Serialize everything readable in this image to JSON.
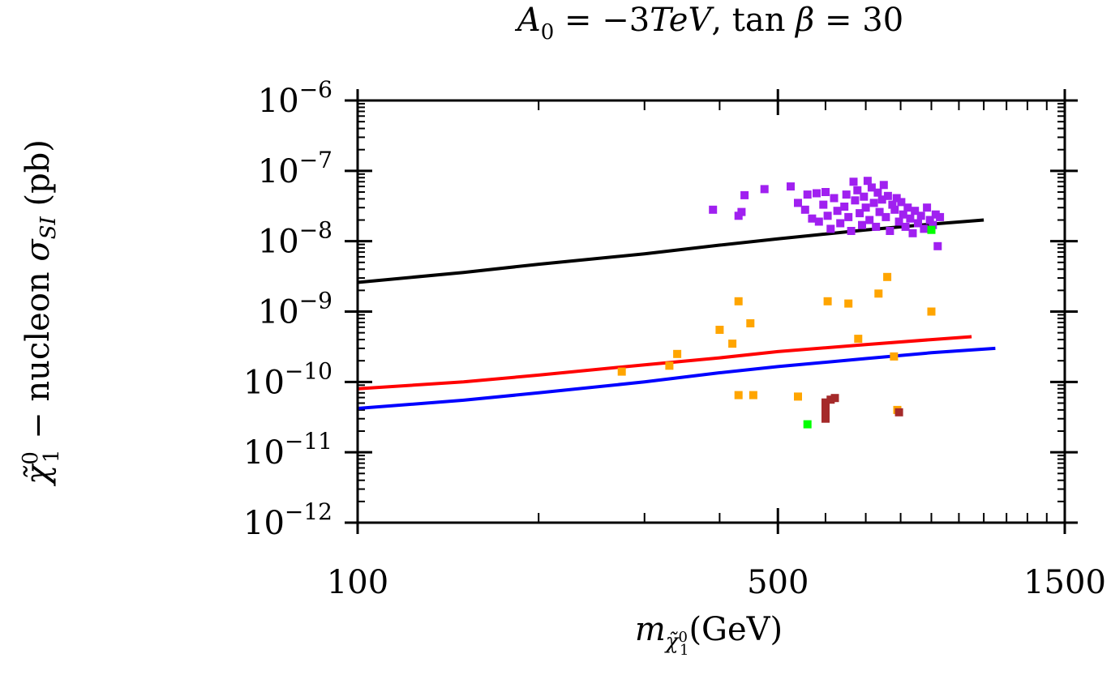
{
  "chart_data": {
    "type": "scatter",
    "title_parts": [
      "A",
      "0",
      " = −3",
      "TeV",
      ", tan ",
      "β",
      " = 30"
    ],
    "xlabel": "mχ̃₁⁰(GeV)",
    "xlabel_parts": [
      "m",
      "χ̃",
      "0",
      "1",
      "(GeV)"
    ],
    "ylabel": "χ̃₁⁰ − nucleon σSI (pb)",
    "ylabel_parts": [
      "χ̃",
      "0",
      "1",
      " − nucleon ",
      "σ",
      "SI",
      " (pb)"
    ],
    "x_scale": "log",
    "y_scale": "log",
    "xlim": [
      100,
      1500
    ],
    "ylim_exp": [
      -12,
      -6
    ],
    "x_ticks": [
      {
        "value": 100,
        "label": "100"
      },
      {
        "value": 500,
        "label": "500"
      },
      {
        "value": 1500,
        "label": "1500"
      }
    ],
    "y_ticks": [
      {
        "exp": -6,
        "base": "10",
        "sup": "−6"
      },
      {
        "exp": -7,
        "base": "10",
        "sup": "−7"
      },
      {
        "exp": -8,
        "base": "10",
        "sup": "−8"
      },
      {
        "exp": -9,
        "base": "10",
        "sup": "−9"
      },
      {
        "exp": -10,
        "base": "10",
        "sup": "−10"
      },
      {
        "exp": -11,
        "base": "10",
        "sup": "−11"
      },
      {
        "exp": -12,
        "base": "10",
        "sup": "−12"
      }
    ],
    "lines": [
      {
        "name": "black limit",
        "color": "#000000",
        "points": [
          [
            100,
            2.6e-09
          ],
          [
            150,
            3.6e-09
          ],
          [
            200,
            4.7e-09
          ],
          [
            300,
            6.6e-09
          ],
          [
            400,
            8.8e-09
          ],
          [
            500,
            1.08e-08
          ],
          [
            700,
            1.45e-08
          ],
          [
            900,
            1.75e-08
          ],
          [
            1100,
            2e-08
          ]
        ]
      },
      {
        "name": "red limit",
        "color": "#ff0000",
        "points": [
          [
            100,
            8e-11
          ],
          [
            150,
            1e-10
          ],
          [
            200,
            1.25e-10
          ],
          [
            300,
            1.75e-10
          ],
          [
            400,
            2.2e-10
          ],
          [
            500,
            2.7e-10
          ],
          [
            700,
            3.4e-10
          ],
          [
            900,
            4e-10
          ],
          [
            1050,
            4.4e-10
          ]
        ]
      },
      {
        "name": "blue limit",
        "color": "#0000ff",
        "points": [
          [
            100,
            4.2e-11
          ],
          [
            150,
            5.5e-11
          ],
          [
            200,
            7e-11
          ],
          [
            300,
            1e-10
          ],
          [
            400,
            1.35e-10
          ],
          [
            500,
            1.65e-10
          ],
          [
            700,
            2.15e-10
          ],
          [
            900,
            2.6e-10
          ],
          [
            1150,
            3e-10
          ]
        ]
      }
    ],
    "series": [
      {
        "name": "purple",
        "color": "#a020f0",
        "points": [
          [
            390,
            2.8e-08
          ],
          [
            430,
            2.3e-08
          ],
          [
            435,
            2.6e-08
          ],
          [
            440,
            4.5e-08
          ],
          [
            475,
            5.5e-08
          ],
          [
            525,
            6e-08
          ],
          [
            540,
            3.5e-08
          ],
          [
            555,
            2.8e-08
          ],
          [
            560,
            4.6e-08
          ],
          [
            570,
            2.1e-08
          ],
          [
            580,
            4.8e-08
          ],
          [
            585,
            1.9e-08
          ],
          [
            595,
            3.3e-08
          ],
          [
            600,
            5e-08
          ],
          [
            605,
            2.3e-08
          ],
          [
            612,
            1.5e-08
          ],
          [
            620,
            4.1e-08
          ],
          [
            628,
            2.7e-08
          ],
          [
            635,
            1.8e-08
          ],
          [
            645,
            3.1e-08
          ],
          [
            650,
            4.6e-08
          ],
          [
            655,
            2.2e-08
          ],
          [
            662,
            1.4e-08
          ],
          [
            668,
            7e-08
          ],
          [
            672,
            3.8e-08
          ],
          [
            678,
            5.3e-08
          ],
          [
            684,
            2.5e-08
          ],
          [
            690,
            1.7e-08
          ],
          [
            695,
            4.3e-08
          ],
          [
            700,
            3e-08
          ],
          [
            705,
            7.2e-08
          ],
          [
            710,
            2e-08
          ],
          [
            716,
            5.8e-08
          ],
          [
            722,
            3.5e-08
          ],
          [
            728,
            1.6e-08
          ],
          [
            733,
            4.9e-08
          ],
          [
            738,
            2.6e-08
          ],
          [
            745,
            3.9e-08
          ],
          [
            750,
            6.3e-08
          ],
          [
            756,
            2.2e-08
          ],
          [
            762,
            4.4e-08
          ],
          [
            768,
            1.4e-08
          ],
          [
            775,
            3.3e-08
          ],
          [
            782,
            2.8e-08
          ],
          [
            788,
            4.1e-08
          ],
          [
            795,
            1.9e-08
          ],
          [
            802,
            3.6e-08
          ],
          [
            808,
            2.4e-08
          ],
          [
            815,
            1.6e-08
          ],
          [
            822,
            3e-08
          ],
          [
            830,
            2.1e-08
          ],
          [
            838,
            1.3e-08
          ],
          [
            845,
            2.7e-08
          ],
          [
            855,
            1.8e-08
          ],
          [
            865,
            2.3e-08
          ],
          [
            875,
            1.5e-08
          ],
          [
            885,
            3e-08
          ],
          [
            895,
            2e-08
          ],
          [
            905,
            1.7e-08
          ],
          [
            915,
            2.4e-08
          ],
          [
            922,
            8.5e-09
          ],
          [
            930,
            2.2e-08
          ]
        ]
      },
      {
        "name": "orange",
        "color": "#ffa500",
        "points": [
          [
            275,
            1.4e-10
          ],
          [
            330,
            1.7e-10
          ],
          [
            340,
            2.5e-10
          ],
          [
            400,
            5.5e-10
          ],
          [
            420,
            3.5e-10
          ],
          [
            430,
            1.4e-09
          ],
          [
            430,
            6.5e-11
          ],
          [
            450,
            6.8e-10
          ],
          [
            455,
            6.5e-11
          ],
          [
            540,
            6.2e-11
          ],
          [
            605,
            1.4e-09
          ],
          [
            655,
            1.3e-09
          ],
          [
            680,
            4.1e-10
          ],
          [
            735,
            1.8e-09
          ],
          [
            760,
            3.1e-09
          ],
          [
            780,
            2.3e-10
          ],
          [
            790,
            4e-11
          ],
          [
            900,
            1e-09
          ]
        ]
      },
      {
        "name": "brown",
        "color": "#a52a2a",
        "points": [
          [
            600,
            3e-11
          ],
          [
            600,
            3.6e-11
          ],
          [
            600,
            4.3e-11
          ],
          [
            600,
            5.1e-11
          ],
          [
            612,
            5.6e-11
          ],
          [
            622,
            5.9e-11
          ],
          [
            795,
            3.7e-11
          ]
        ]
      },
      {
        "name": "green",
        "color": "#00ff00",
        "points": [
          [
            560,
            2.5e-11
          ],
          [
            900,
            1.45e-08
          ]
        ]
      }
    ]
  }
}
